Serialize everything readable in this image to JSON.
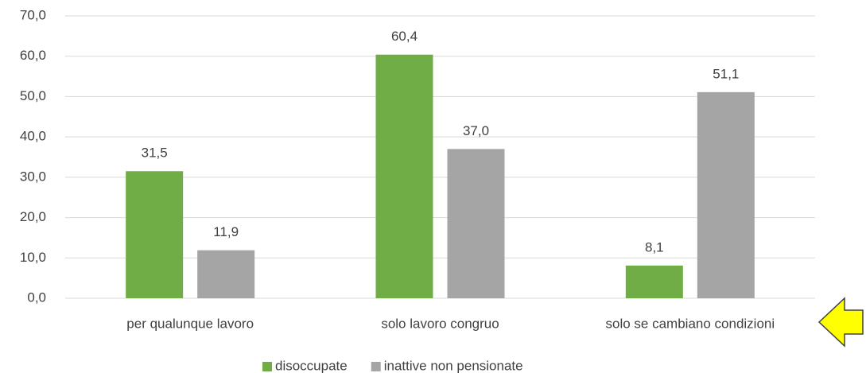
{
  "chart_data": {
    "type": "bar",
    "categories": [
      "per qualunque lavoro",
      "solo lavoro congruo",
      "solo se cambiano condizioni"
    ],
    "series": [
      {
        "name": "disoccupate",
        "color": "#70ad47",
        "values": [
          31.5,
          60.4,
          8.1
        ],
        "value_labels": [
          "31,5",
          "60,4",
          "8,1"
        ]
      },
      {
        "name": "inattive non pensionate",
        "color": "#a5a5a5",
        "values": [
          11.9,
          37.0,
          51.1
        ],
        "value_labels": [
          "11,9",
          "37,0",
          "51,1"
        ]
      }
    ],
    "ylim": [
      0,
      70
    ],
    "yticks": [
      {
        "value": 0,
        "label": "0,0"
      },
      {
        "value": 10,
        "label": "10,0"
      },
      {
        "value": 20,
        "label": "20,0"
      },
      {
        "value": 30,
        "label": "30,0"
      },
      {
        "value": 40,
        "label": "40,0"
      },
      {
        "value": 50,
        "label": "50,0"
      },
      {
        "value": 60,
        "label": "60,0"
      },
      {
        "value": 70,
        "label": "70,0"
      }
    ],
    "grid": true,
    "legend": "bottom"
  }
}
